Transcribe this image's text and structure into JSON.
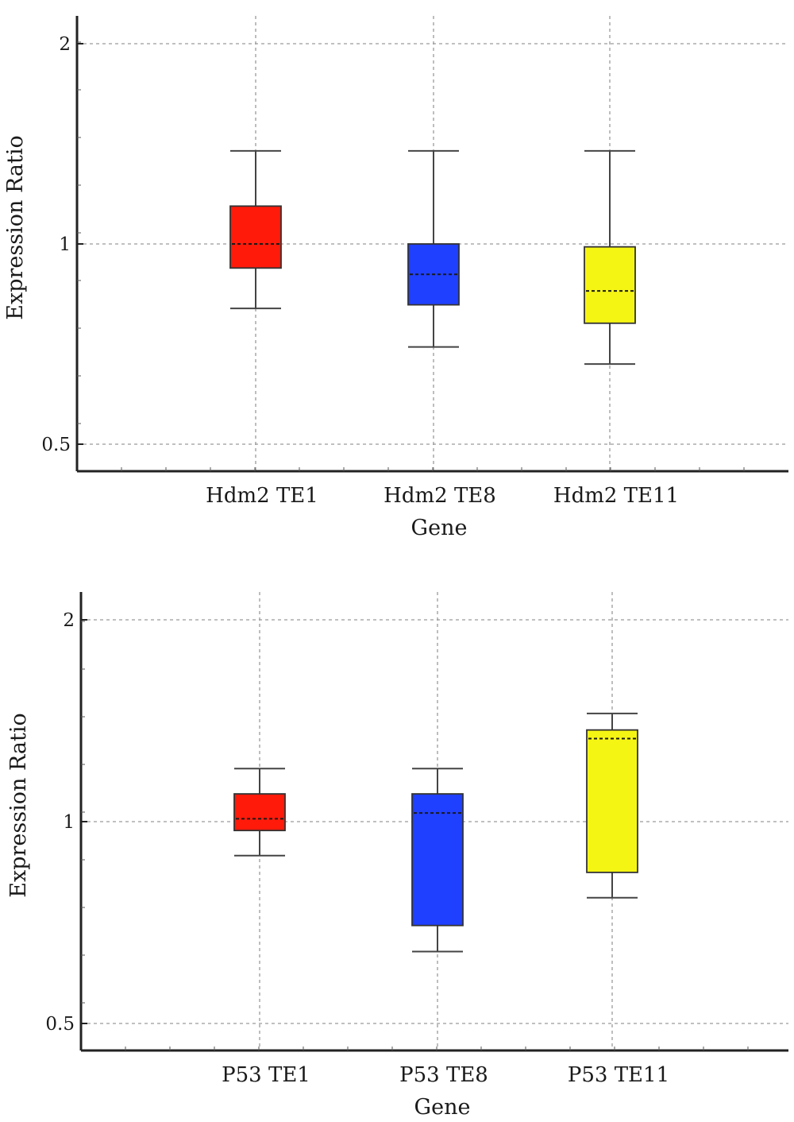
{
  "chart_data": [
    {
      "type": "box",
      "scale": "log2",
      "xlabel": "Gene",
      "ylabel": "Expression Ratio",
      "ylim": [
        0.45,
        2.1
      ],
      "yticks": [
        0.5,
        1,
        2
      ],
      "ytick_labels": [
        "0.5",
        "1",
        "2"
      ],
      "grid": true,
      "categories": [
        "Hdm2 TE1",
        "Hdm2 TE8",
        "Hdm2 TE11"
      ],
      "boxes": [
        {
          "label": "Hdm2 TE1",
          "color": "#ff1a0a",
          "whisker_low": 0.8,
          "q1": 0.92,
          "median": 1.0,
          "q3": 1.14,
          "whisker_high": 1.38
        },
        {
          "label": "Hdm2 TE8",
          "color": "#2040ff",
          "whisker_low": 0.7,
          "q1": 0.81,
          "median": 0.9,
          "q3": 1.0,
          "whisker_high": 1.38
        },
        {
          "label": "Hdm2 TE11",
          "color": "#f5f514",
          "whisker_low": 0.66,
          "q1": 0.76,
          "median": 0.85,
          "q3": 0.99,
          "whisker_high": 1.38
        }
      ]
    },
    {
      "type": "box",
      "scale": "log2",
      "xlabel": "Gene",
      "ylabel": "Expression Ratio",
      "ylim": [
        0.45,
        2.1
      ],
      "yticks": [
        0.5,
        1,
        2
      ],
      "ytick_labels": [
        "0.5",
        "1",
        "2"
      ],
      "grid": true,
      "categories": [
        "P53 TE1",
        "P53 TE8",
        "P53 TE11"
      ],
      "boxes": [
        {
          "label": "P53 TE1",
          "color": "#ff1a0a",
          "whisker_low": 0.89,
          "q1": 0.97,
          "median": 1.01,
          "q3": 1.1,
          "whisker_high": 1.2
        },
        {
          "label": "P53 TE8",
          "color": "#2040ff",
          "whisker_low": 0.64,
          "q1": 0.7,
          "median": 1.03,
          "q3": 1.1,
          "whisker_high": 1.2
        },
        {
          "label": "P53 TE11",
          "color": "#f5f514",
          "whisker_low": 0.77,
          "q1": 0.84,
          "median": 1.33,
          "q3": 1.37,
          "whisker_high": 1.45
        }
      ]
    }
  ]
}
